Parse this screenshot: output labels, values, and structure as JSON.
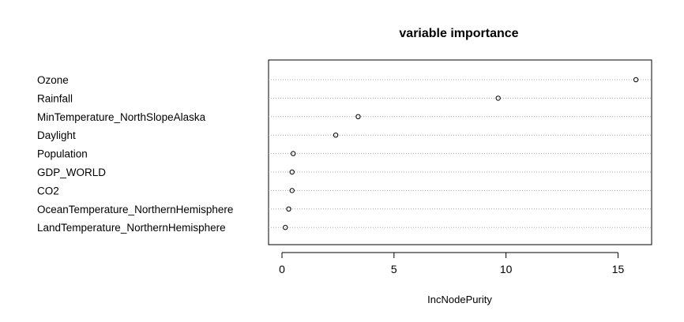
{
  "chart_data": {
    "type": "dotchart",
    "title": "variable importance",
    "xlabel": "IncNodePurity",
    "ylabel": "",
    "xlim": [
      -0.6,
      16.5
    ],
    "xticks": [
      0,
      5,
      10,
      15
    ],
    "grid": "horizontal dotted",
    "categories": [
      "Ozone",
      "Rainfall",
      "MinTemperature_NorthSlopeAlaska",
      "Daylight",
      "Population",
      "GDP_WORLD",
      "CO2",
      "OceanTemperature_NorthernHemisphere",
      "LandTemperature_NorthernHemisphere"
    ],
    "values": [
      15.8,
      9.65,
      3.4,
      2.4,
      0.5,
      0.45,
      0.45,
      0.3,
      0.15
    ]
  }
}
